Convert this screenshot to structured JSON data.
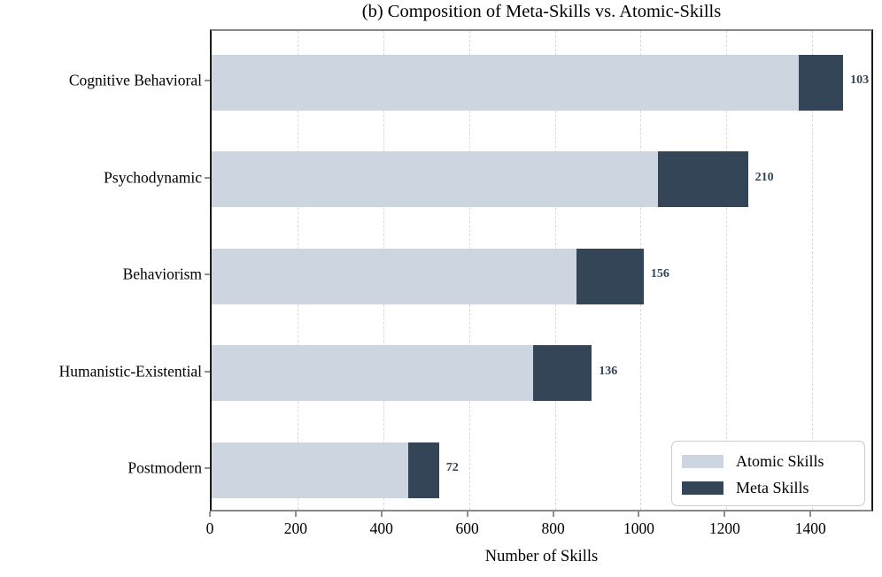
{
  "title": "(b) Composition of Meta-Skills vs. Atomic-Skills",
  "chart_data": {
    "type": "bar",
    "orientation": "horizontal",
    "stacked": true,
    "title": "(b) Composition of Meta-Skills vs. Atomic-Skills",
    "xlabel": "Number of Skills",
    "ylabel": "",
    "categories": [
      "Cognitive Behavioral",
      "Psychodynamic",
      "Behaviorism",
      "Humanistic-Existential",
      "Postmodern"
    ],
    "series": [
      {
        "name": "Atomic Skills",
        "color": "#CCD5E0",
        "values": [
          1369,
          1040,
          851,
          750,
          458
        ]
      },
      {
        "name": "Meta Skills",
        "color": "#344557",
        "values": [
          103,
          210,
          156,
          136,
          72
        ]
      }
    ],
    "totals": [
      1472,
      1250,
      1007,
      886,
      530
    ],
    "bar_value_labels": [
      "103",
      "210",
      "156",
      "136",
      "72"
    ],
    "value_label_color": "#344557",
    "xlim": [
      0,
      1546
    ],
    "xticks": [
      "0",
      "200",
      "400",
      "600",
      "800",
      "1000",
      "1200",
      "1400"
    ],
    "xtick_values": [
      0,
      200,
      400,
      600,
      800,
      1000,
      1200,
      1400
    ],
    "grid": "vertical-dashed",
    "gridline_color": "#d9d9d9",
    "legend_position": "lower right",
    "legend_labels": [
      "Atomic Skills",
      "Meta Skills"
    ]
  }
}
